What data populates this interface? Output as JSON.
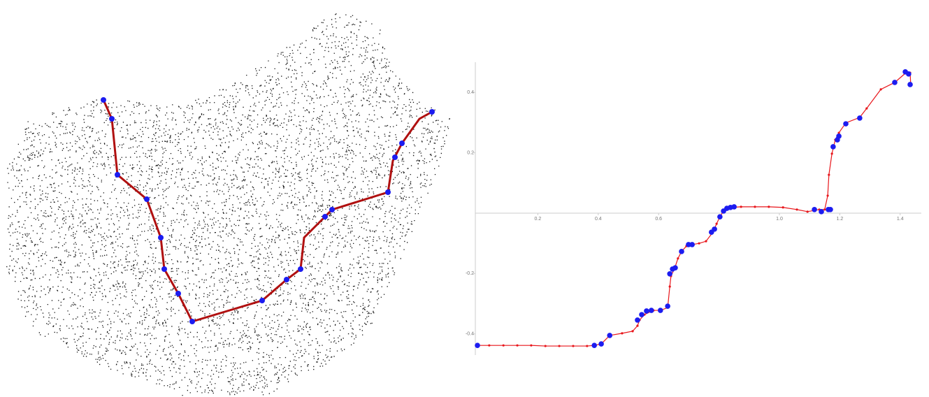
{
  "chart_data": {
    "type": "line",
    "xlim": [
      -0.007,
      1.47
    ],
    "ylim": [
      -0.47,
      0.5
    ],
    "xticks": [
      0.2,
      0.4,
      0.6,
      {
        "value": 1,
        "label": "1.0"
      },
      1.2,
      1.4
    ],
    "yticks": [
      0.4,
      0.2,
      -0.2,
      -0.4
    ],
    "series": [
      {
        "color": "#e8161b",
        "mode": "lines+markers",
        "x": [
          0.0,
          0.039,
          0.086,
          0.132,
          0.178,
          0.225,
          0.271,
          0.317,
          0.363,
          0.387,
          0.41,
          0.438,
          0.479,
          0.514,
          0.53,
          0.537,
          0.553,
          0.583,
          0.606,
          0.63,
          0.637,
          0.641,
          0.653,
          0.664,
          0.676,
          0.692,
          0.711,
          0.734,
          0.757,
          0.78,
          0.792,
          0.803,
          0.815,
          0.838,
          0.873,
          0.919,
          0.965,
          1.012,
          1.058,
          1.093,
          1.132,
          1.15,
          1.16,
          1.164,
          1.174,
          1.185,
          1.197,
          1.22,
          1.266,
          1.289,
          1.336,
          1.382,
          1.419,
          1.433,
          1.435
        ],
        "values": [
          -0.438,
          -0.438,
          -0.438,
          -0.438,
          -0.438,
          -0.44,
          -0.44,
          -0.44,
          -0.44,
          -0.438,
          -0.433,
          -0.405,
          -0.398,
          -0.391,
          -0.373,
          -0.354,
          -0.336,
          -0.322,
          -0.322,
          -0.313,
          -0.243,
          -0.208,
          -0.183,
          -0.15,
          -0.127,
          -0.109,
          -0.104,
          -0.1,
          -0.093,
          -0.063,
          -0.035,
          -0.012,
          0.007,
          0.019,
          0.021,
          0.021,
          0.021,
          0.019,
          0.012,
          0.005,
          0.012,
          0.012,
          0.058,
          0.127,
          0.197,
          0.243,
          0.266,
          0.299,
          0.317,
          0.347,
          0.41,
          0.433,
          0.465,
          0.465,
          0.424
        ]
      },
      {
        "color": "#1c1cf0",
        "mode": "markers",
        "x": [
          0.0,
          0.387,
          0.41,
          0.438,
          0.53,
          0.544,
          0.56,
          0.576,
          0.606,
          0.63,
          0.637,
          0.646,
          0.655,
          0.676,
          0.699,
          0.711,
          0.775,
          0.785,
          0.803,
          0.815,
          0.826,
          0.838,
          0.85,
          1.116,
          1.139,
          1.162,
          1.169,
          1.178,
          1.192,
          1.197,
          1.22,
          1.266,
          1.382,
          1.417,
          1.428,
          1.433
        ],
        "values": [
          -0.438,
          -0.438,
          -0.433,
          -0.405,
          -0.354,
          -0.336,
          -0.324,
          -0.322,
          -0.322,
          -0.308,
          -0.201,
          -0.185,
          -0.181,
          -0.127,
          -0.104,
          -0.104,
          -0.063,
          -0.053,
          -0.012,
          0.007,
          0.016,
          0.019,
          0.021,
          0.012,
          0.005,
          0.012,
          0.012,
          0.22,
          0.243,
          0.255,
          0.296,
          0.315,
          0.433,
          0.468,
          0.461,
          0.426
        ]
      }
    ]
  }
}
